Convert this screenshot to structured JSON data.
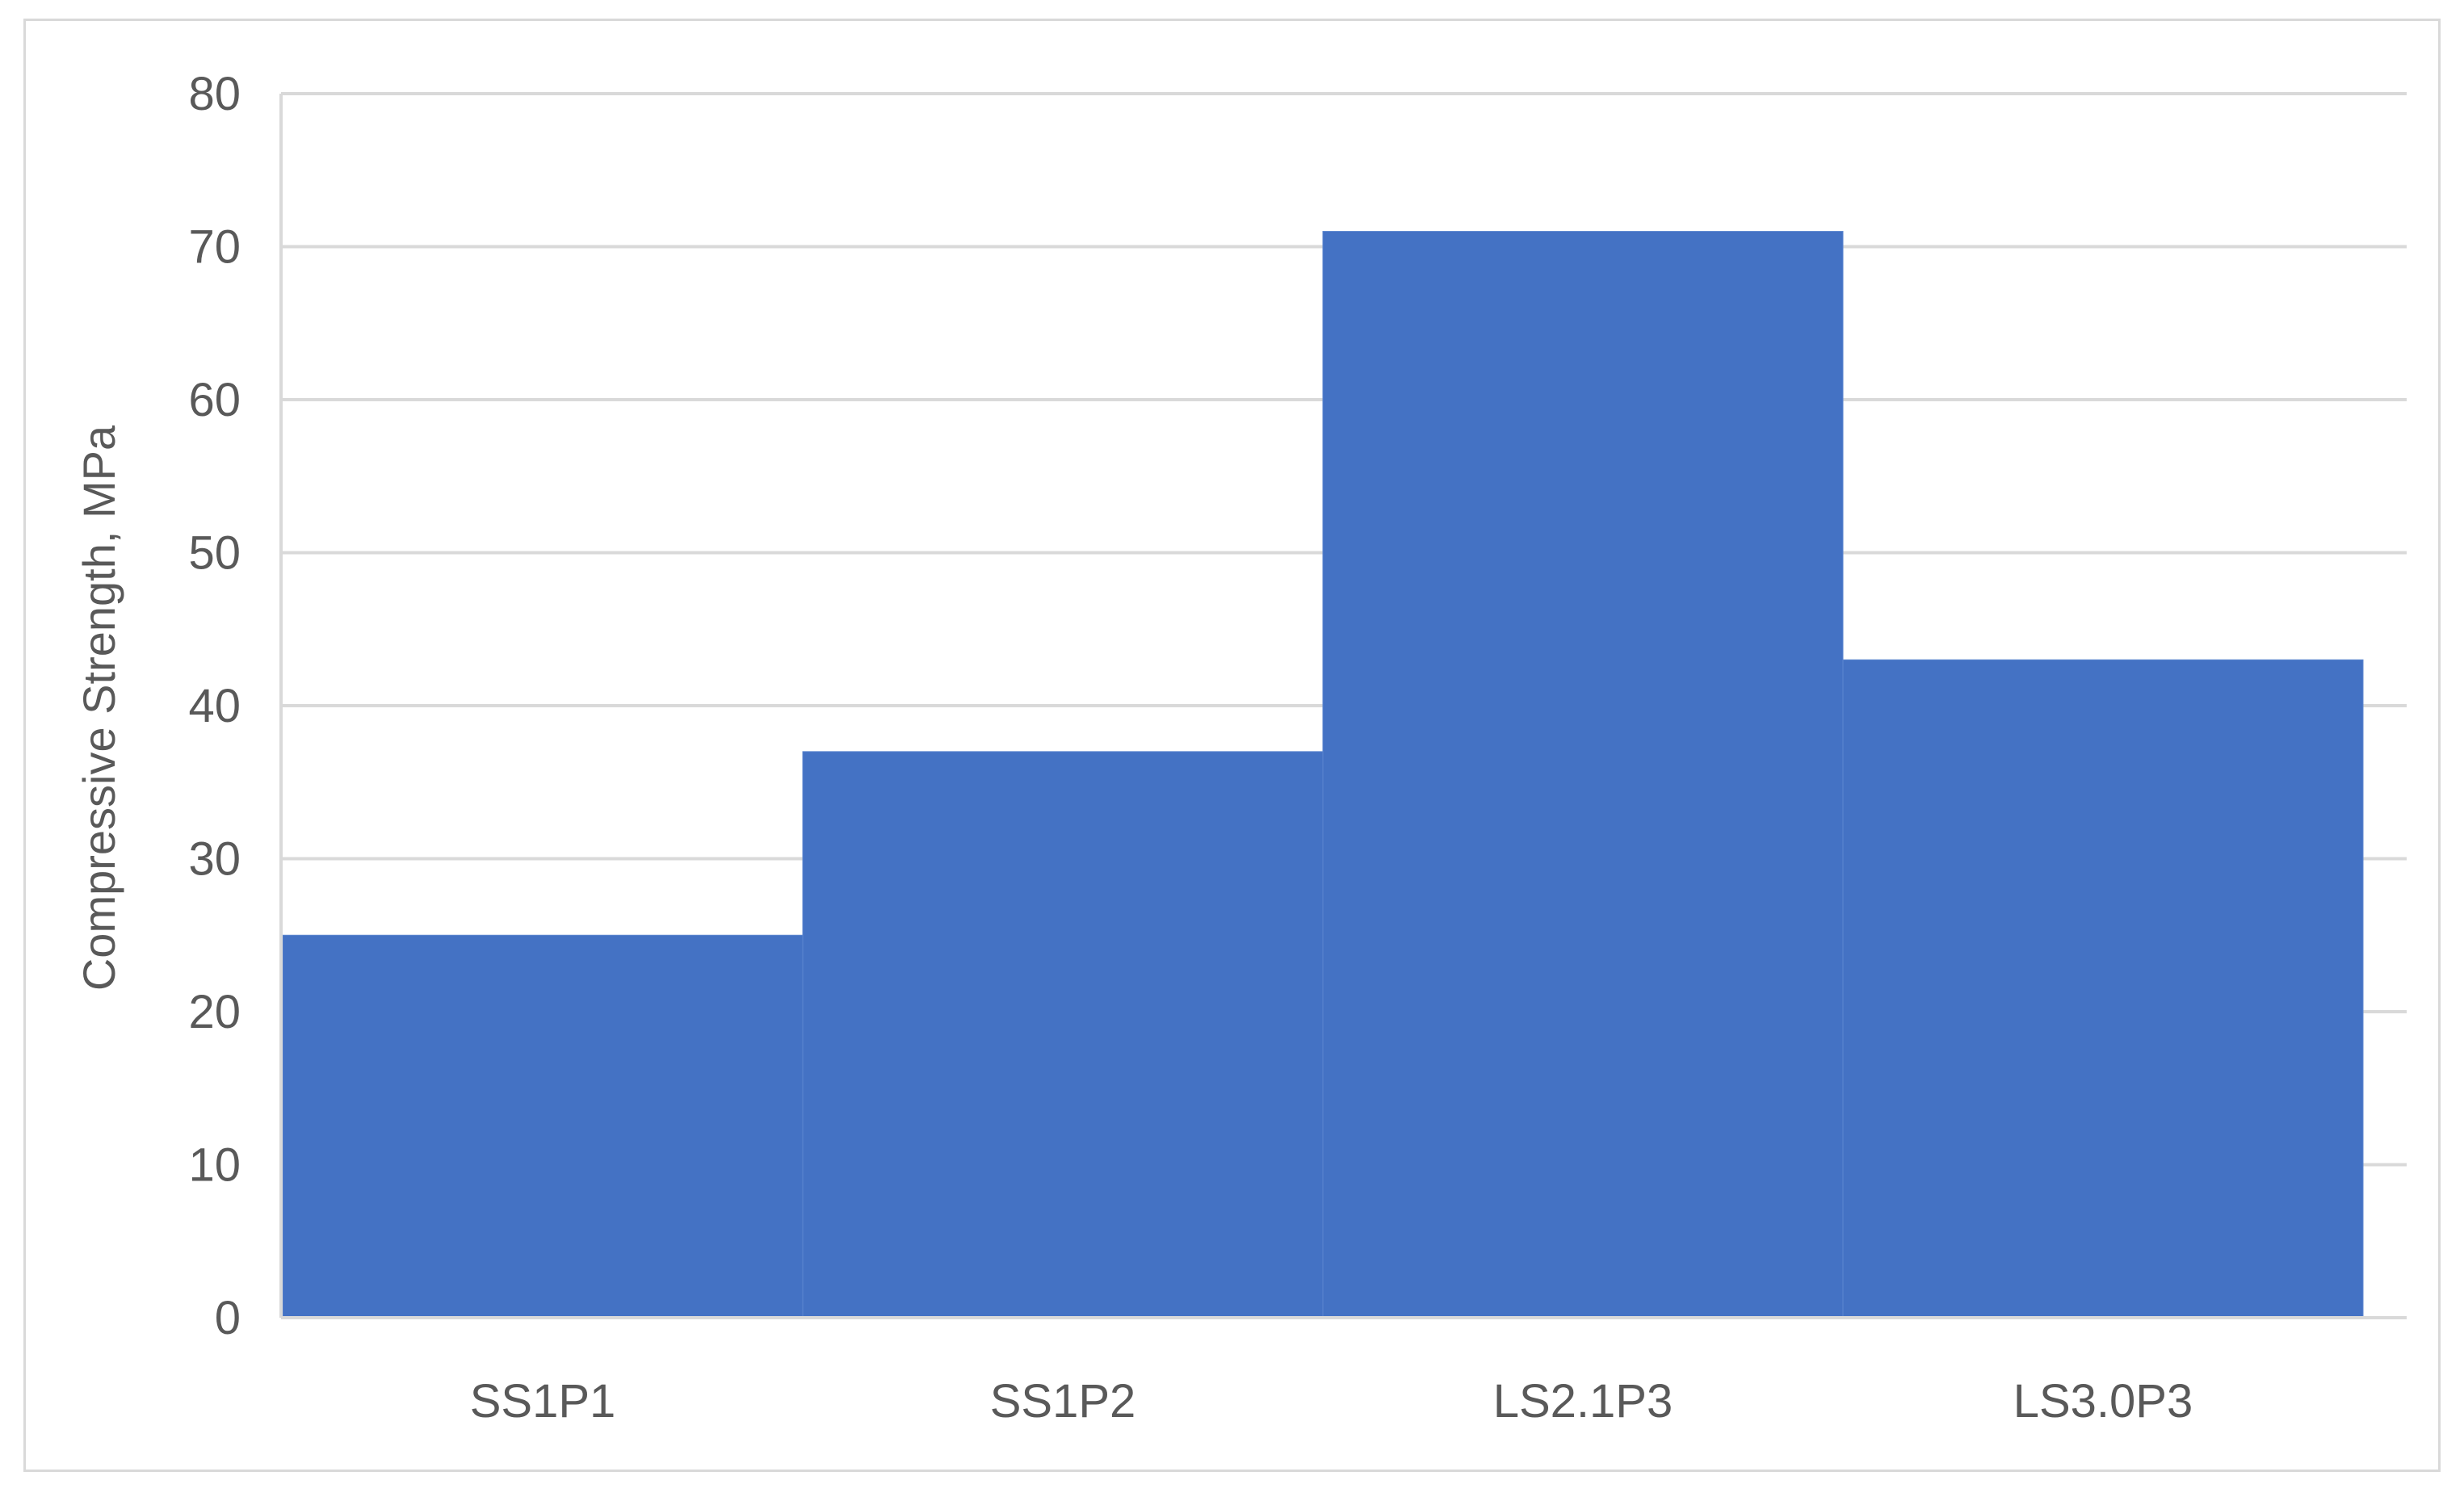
{
  "chart_data": {
    "type": "bar",
    "title": "",
    "xlabel": "",
    "ylabel": "Compressive Strength, MPa",
    "categories": [
      "SS1P1",
      "SS1P2",
      "LS2.1P3",
      "LS3.0P3"
    ],
    "values": [
      25,
      37,
      71,
      43
    ],
    "ylim": [
      0,
      80
    ],
    "yticks": [
      "0",
      "10",
      "20",
      "30",
      "40",
      "50",
      "60",
      "70",
      "80"
    ],
    "grid": true,
    "legend": "none",
    "bar_color": "#4472C4",
    "gridline_color": "#d9d9d9",
    "text_color": "#595959"
  }
}
